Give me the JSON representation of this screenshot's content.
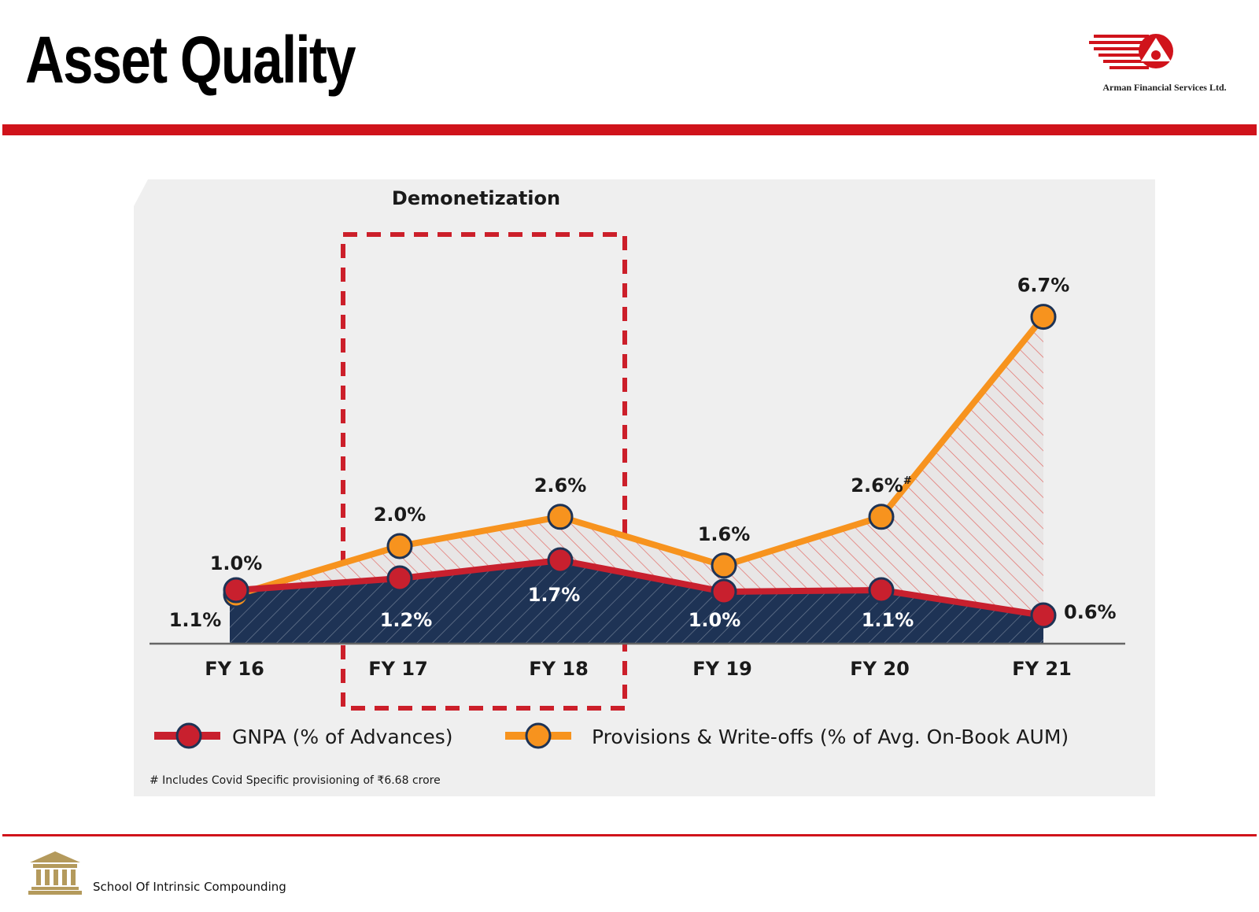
{
  "page": {
    "title": "Asset Quality",
    "brand": "Arman Financial Services Ltd.",
    "footer": "School Of Intrinsic Compounding",
    "accent_color": "#d0131b"
  },
  "chart_data": {
    "type": "line",
    "categories": [
      "FY 16",
      "FY 17",
      "FY 18",
      "FY 19",
      "FY 20",
      "FY 21"
    ],
    "series": [
      {
        "name": "GNPA (% of Advances)",
        "values": [
          1.1,
          1.2,
          1.7,
          1.0,
          1.1,
          0.6
        ],
        "labels": [
          "1.1%",
          "1.2%",
          "1.7%",
          "1.0%",
          "1.1%",
          "0.6%"
        ],
        "color": "#c8202e",
        "fill": "#1e3355"
      },
      {
        "name": "Provisions & Write-offs (% of Avg. On-Book AUM)",
        "values": [
          1.0,
          2.0,
          2.6,
          1.6,
          2.6,
          6.7
        ],
        "labels": [
          "1.0%",
          "2.0%",
          "2.6%",
          "1.6%",
          "2.6%",
          "6.7%"
        ],
        "label_superscripts": [
          "",
          "",
          "",
          "",
          "#",
          ""
        ],
        "color": "#f7931e"
      }
    ],
    "highlight": {
      "label": "Demonetization",
      "categories": [
        "FY 17",
        "FY 18"
      ]
    },
    "footnote": "# Includes Covid Specific provisioning of ₹6.68 crore",
    "legend_position": "bottom"
  }
}
